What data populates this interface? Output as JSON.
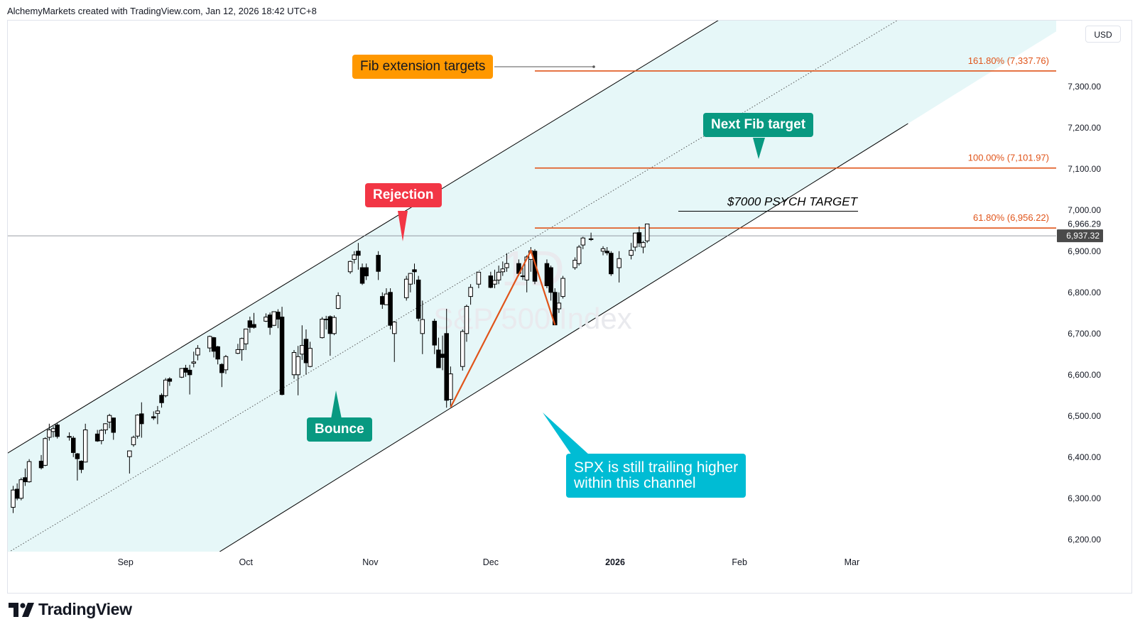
{
  "header": {
    "caption": "AlchemyMarkets created with TradingView.com, Jan 12, 2026 18:42 UTC+8"
  },
  "currency_button": "USD",
  "watermark": {
    "interval": "1D",
    "symbol": "S&P 500 Index"
  },
  "footer": {
    "brand": "TradingView"
  },
  "colors": {
    "up_candle_fill": "#ffffff",
    "down_candle_fill": "#000000",
    "channel_fill": "#e6f7f8",
    "fib_line": "#e0541a",
    "label_rejection": "#f23645",
    "label_bounce": "#089981",
    "label_fib_ext": "#ff9800",
    "label_next_fib": "#089981",
    "label_spx": "#00bcd4"
  },
  "chart_data": {
    "type": "candlestick",
    "ylim": [
      6140,
      7460
    ],
    "y_ticks": [
      "6,200.00",
      "6,300.00",
      "6,400.00",
      "6,500.00",
      "6,600.00",
      "6,700.00",
      "6,800.00",
      "6,900.00",
      "7,000.00",
      "7,100.00",
      "7,200.00",
      "7,300.00"
    ],
    "y_tick_values": [
      6200,
      6300,
      6400,
      6500,
      6600,
      6700,
      6800,
      6900,
      7000,
      7100,
      7200,
      7300
    ],
    "x_ticks": [
      {
        "label": "Sep",
        "date": "2025-09-01",
        "bold": false
      },
      {
        "label": "Oct",
        "date": "2025-10-01",
        "bold": false
      },
      {
        "label": "Nov",
        "date": "2025-11-01",
        "bold": false
      },
      {
        "label": "Dec",
        "date": "2025-12-01",
        "bold": false
      },
      {
        "label": "2026",
        "date": "2026-01-01",
        "bold": true
      },
      {
        "label": "Feb",
        "date": "2026-02-01",
        "bold": false
      },
      {
        "label": "Mar",
        "date": "2026-03-01",
        "bold": false
      }
    ],
    "candles": [
      {
        "d": "2025-08-04",
        "o": 6278,
        "h": 6330,
        "l": 6264,
        "c": 6320
      },
      {
        "d": "2025-08-05",
        "o": 6322,
        "h": 6336,
        "l": 6295,
        "c": 6300
      },
      {
        "d": "2025-08-06",
        "o": 6300,
        "h": 6350,
        "l": 6295,
        "c": 6345
      },
      {
        "d": "2025-08-07",
        "o": 6350,
        "h": 6372,
        "l": 6330,
        "c": 6340
      },
      {
        "d": "2025-08-08",
        "o": 6340,
        "h": 6395,
        "l": 6338,
        "c": 6389
      },
      {
        "d": "2025-08-11",
        "o": 6390,
        "h": 6405,
        "l": 6370,
        "c": 6374
      },
      {
        "d": "2025-08-12",
        "o": 6380,
        "h": 6448,
        "l": 6378,
        "c": 6445
      },
      {
        "d": "2025-08-13",
        "o": 6448,
        "h": 6481,
        "l": 6440,
        "c": 6466
      },
      {
        "d": "2025-08-14",
        "o": 6462,
        "h": 6475,
        "l": 6448,
        "c": 6469
      },
      {
        "d": "2025-08-15",
        "o": 6478,
        "h": 6482,
        "l": 6445,
        "c": 6450
      },
      {
        "d": "2025-08-18",
        "o": 6450,
        "h": 6460,
        "l": 6440,
        "c": 6449
      },
      {
        "d": "2025-08-19",
        "o": 6446,
        "h": 6451,
        "l": 6400,
        "c": 6411
      },
      {
        "d": "2025-08-20",
        "o": 6408,
        "h": 6410,
        "l": 6343,
        "c": 6396
      },
      {
        "d": "2025-08-21",
        "o": 6390,
        "h": 6392,
        "l": 6361,
        "c": 6370
      },
      {
        "d": "2025-08-22",
        "o": 6388,
        "h": 6481,
        "l": 6387,
        "c": 6466
      },
      {
        "d": "2025-08-25",
        "o": 6456,
        "h": 6466,
        "l": 6437,
        "c": 6439
      },
      {
        "d": "2025-08-26",
        "o": 6440,
        "h": 6468,
        "l": 6431,
        "c": 6465
      },
      {
        "d": "2025-08-27",
        "o": 6466,
        "h": 6482,
        "l": 6456,
        "c": 6481
      },
      {
        "d": "2025-08-28",
        "o": 6485,
        "h": 6505,
        "l": 6470,
        "c": 6501
      },
      {
        "d": "2025-08-29",
        "o": 6495,
        "h": 6496,
        "l": 6442,
        "c": 6460
      },
      {
        "d": "2025-09-02",
        "o": 6401,
        "h": 6416,
        "l": 6360,
        "c": 6415
      },
      {
        "d": "2025-09-03",
        "o": 6430,
        "h": 6452,
        "l": 6425,
        "c": 6448
      },
      {
        "d": "2025-09-04",
        "o": 6451,
        "h": 6504,
        "l": 6445,
        "c": 6502
      },
      {
        "d": "2025-09-05",
        "o": 6505,
        "h": 6533,
        "l": 6447,
        "c": 6481
      },
      {
        "d": "2025-09-08",
        "o": 6498,
        "h": 6511,
        "l": 6490,
        "c": 6495
      },
      {
        "d": "2025-09-09",
        "o": 6506,
        "h": 6524,
        "l": 6480,
        "c": 6512
      },
      {
        "d": "2025-09-10",
        "o": 6550,
        "h": 6555,
        "l": 6520,
        "c": 6532
      },
      {
        "d": "2025-09-11",
        "o": 6549,
        "h": 6592,
        "l": 6545,
        "c": 6587
      },
      {
        "d": "2025-09-12",
        "o": 6590,
        "h": 6594,
        "l": 6573,
        "c": 6584
      },
      {
        "d": "2025-09-15",
        "o": 6594,
        "h": 6616,
        "l": 6592,
        "c": 6615
      },
      {
        "d": "2025-09-16",
        "o": 6616,
        "h": 6624,
        "l": 6595,
        "c": 6606
      },
      {
        "d": "2025-09-17",
        "o": 6611,
        "h": 6624,
        "l": 6552,
        "c": 6600
      },
      {
        "d": "2025-09-18",
        "o": 6628,
        "h": 6656,
        "l": 6618,
        "c": 6631
      },
      {
        "d": "2025-09-19",
        "o": 6648,
        "h": 6672,
        "l": 6635,
        "c": 6664
      },
      {
        "d": "2025-09-22",
        "o": 6665,
        "h": 6695,
        "l": 6655,
        "c": 6693
      },
      {
        "d": "2025-09-23",
        "o": 6690,
        "h": 6692,
        "l": 6642,
        "c": 6657
      },
      {
        "d": "2025-09-24",
        "o": 6668,
        "h": 6670,
        "l": 6625,
        "c": 6638
      },
      {
        "d": "2025-09-25",
        "o": 6625,
        "h": 6628,
        "l": 6570,
        "c": 6605
      },
      {
        "d": "2025-09-26",
        "o": 6612,
        "h": 6648,
        "l": 6602,
        "c": 6644
      },
      {
        "d": "2025-09-29",
        "o": 6652,
        "h": 6675,
        "l": 6650,
        "c": 6661
      },
      {
        "d": "2025-09-30",
        "o": 6661,
        "h": 6690,
        "l": 6634,
        "c": 6688
      },
      {
        "d": "2025-10-01",
        "o": 6675,
        "h": 6711,
        "l": 6660,
        "c": 6711
      },
      {
        "d": "2025-10-02",
        "o": 6731,
        "h": 6741,
        "l": 6702,
        "c": 6715
      },
      {
        "d": "2025-10-03",
        "o": 6722,
        "h": 6750,
        "l": 6712,
        "c": 6715
      },
      {
        "d": "2025-10-06",
        "o": 6730,
        "h": 6749,
        "l": 6728,
        "c": 6740
      },
      {
        "d": "2025-10-07",
        "o": 6745,
        "h": 6751,
        "l": 6697,
        "c": 6715
      },
      {
        "d": "2025-10-08",
        "o": 6720,
        "h": 6753,
        "l": 6718,
        "c": 6753
      },
      {
        "d": "2025-10-09",
        "o": 6752,
        "h": 6759,
        "l": 6713,
        "c": 6735
      },
      {
        "d": "2025-10-10",
        "o": 6740,
        "h": 6765,
        "l": 6550,
        "c": 6552
      },
      {
        "d": "2025-10-13",
        "o": 6600,
        "h": 6660,
        "l": 6590,
        "c": 6654
      },
      {
        "d": "2025-10-14",
        "o": 6600,
        "h": 6670,
        "l": 6550,
        "c": 6644
      },
      {
        "d": "2025-10-15",
        "o": 6650,
        "h": 6720,
        "l": 6636,
        "c": 6671
      },
      {
        "d": "2025-10-16",
        "o": 6686,
        "h": 6710,
        "l": 6600,
        "c": 6629
      },
      {
        "d": "2025-10-17",
        "o": 6620,
        "h": 6680,
        "l": 6618,
        "c": 6664
      },
      {
        "d": "2025-10-20",
        "o": 6690,
        "h": 6740,
        "l": 6688,
        "c": 6735
      },
      {
        "d": "2025-10-21",
        "o": 6735,
        "h": 6743,
        "l": 6710,
        "c": 6735
      },
      {
        "d": "2025-10-22",
        "o": 6741,
        "h": 6744,
        "l": 6646,
        "c": 6700
      },
      {
        "d": "2025-10-23",
        "o": 6700,
        "h": 6744,
        "l": 6696,
        "c": 6739
      },
      {
        "d": "2025-10-24",
        "o": 6761,
        "h": 6800,
        "l": 6759,
        "c": 6792
      },
      {
        "d": "2025-10-27",
        "o": 6850,
        "h": 6877,
        "l": 6845,
        "c": 6875
      },
      {
        "d": "2025-10-28",
        "o": 6880,
        "h": 6900,
        "l": 6870,
        "c": 6891
      },
      {
        "d": "2025-10-29",
        "o": 6900,
        "h": 6920,
        "l": 6855,
        "c": 6890
      },
      {
        "d": "2025-10-30",
        "o": 6860,
        "h": 6870,
        "l": 6818,
        "c": 6822
      },
      {
        "d": "2025-10-31",
        "o": 6860,
        "h": 6870,
        "l": 6830,
        "c": 6840
      },
      {
        "d": "2025-11-03",
        "o": 6890,
        "h": 6900,
        "l": 6830,
        "c": 6851
      },
      {
        "d": "2025-11-04",
        "o": 6790,
        "h": 6800,
        "l": 6760,
        "c": 6771
      },
      {
        "d": "2025-11-05",
        "o": 6770,
        "h": 6810,
        "l": 6770,
        "c": 6796
      },
      {
        "d": "2025-11-06",
        "o": 6800,
        "h": 6810,
        "l": 6710,
        "c": 6720
      },
      {
        "d": "2025-11-07",
        "o": 6700,
        "h": 6730,
        "l": 6631,
        "c": 6728
      },
      {
        "d": "2025-11-10",
        "o": 6787,
        "h": 6840,
        "l": 6780,
        "c": 6832
      },
      {
        "d": "2025-11-11",
        "o": 6820,
        "h": 6847,
        "l": 6800,
        "c": 6846
      },
      {
        "d": "2025-11-12",
        "o": 6855,
        "h": 6870,
        "l": 6820,
        "c": 6850
      },
      {
        "d": "2025-11-13",
        "o": 6830,
        "h": 6840,
        "l": 6730,
        "c": 6737
      },
      {
        "d": "2025-11-14",
        "o": 6700,
        "h": 6780,
        "l": 6650,
        "c": 6734
      },
      {
        "d": "2025-11-17",
        "o": 6730,
        "h": 6736,
        "l": 6650,
        "c": 6672
      },
      {
        "d": "2025-11-18",
        "o": 6660,
        "h": 6690,
        "l": 6630,
        "c": 6617
      },
      {
        "d": "2025-11-19",
        "o": 6650,
        "h": 6695,
        "l": 6611,
        "c": 6642
      },
      {
        "d": "2025-11-20",
        "o": 6700,
        "h": 6760,
        "l": 6520,
        "c": 6538
      },
      {
        "d": "2025-11-21",
        "o": 6540,
        "h": 6620,
        "l": 6521,
        "c": 6602
      },
      {
        "d": "2025-11-24",
        "o": 6620,
        "h": 6710,
        "l": 6610,
        "c": 6705
      },
      {
        "d": "2025-11-25",
        "o": 6700,
        "h": 6770,
        "l": 6680,
        "c": 6766
      },
      {
        "d": "2025-11-26",
        "o": 6790,
        "h": 6820,
        "l": 6770,
        "c": 6812
      },
      {
        "d": "2025-11-28",
        "o": 6820,
        "h": 6850,
        "l": 6810,
        "c": 6849
      },
      {
        "d": "2025-12-01",
        "o": 6840,
        "h": 6850,
        "l": 6810,
        "c": 6812
      },
      {
        "d": "2025-12-02",
        "o": 6820,
        "h": 6855,
        "l": 6810,
        "c": 6829
      },
      {
        "d": "2025-12-03",
        "o": 6830,
        "h": 6865,
        "l": 6820,
        "c": 6849
      },
      {
        "d": "2025-12-04",
        "o": 6850,
        "h": 6875,
        "l": 6840,
        "c": 6857
      },
      {
        "d": "2025-12-05",
        "o": 6860,
        "h": 6895,
        "l": 6850,
        "c": 6870
      },
      {
        "d": "2025-12-08",
        "o": 6870,
        "h": 6880,
        "l": 6840,
        "c": 6846
      },
      {
        "d": "2025-12-09",
        "o": 6840,
        "h": 6860,
        "l": 6830,
        "c": 6840
      },
      {
        "d": "2025-12-10",
        "o": 6830,
        "h": 6890,
        "l": 6800,
        "c": 6886
      },
      {
        "d": "2025-12-11",
        "o": 6880,
        "h": 6910,
        "l": 6850,
        "c": 6901
      },
      {
        "d": "2025-12-12",
        "o": 6900,
        "h": 6905,
        "l": 6820,
        "c": 6827
      },
      {
        "d": "2025-12-15",
        "o": 6870,
        "h": 6880,
        "l": 6810,
        "c": 6816
      },
      {
        "d": "2025-12-16",
        "o": 6860,
        "h": 6865,
        "l": 6780,
        "c": 6800
      },
      {
        "d": "2025-12-17",
        "o": 6800,
        "h": 6810,
        "l": 6721,
        "c": 6721
      },
      {
        "d": "2025-12-18",
        "o": 6760,
        "h": 6800,
        "l": 6750,
        "c": 6774
      },
      {
        "d": "2025-12-19",
        "o": 6790,
        "h": 6840,
        "l": 6785,
        "c": 6834
      },
      {
        "d": "2025-12-22",
        "o": 6860,
        "h": 6885,
        "l": 6855,
        "c": 6878
      },
      {
        "d": "2025-12-23",
        "o": 6870,
        "h": 6915,
        "l": 6865,
        "c": 6910
      },
      {
        "d": "2025-12-24",
        "o": 6915,
        "h": 6935,
        "l": 6905,
        "c": 6932
      },
      {
        "d": "2025-12-26",
        "o": 6930,
        "h": 6945,
        "l": 6925,
        "c": 6929
      },
      {
        "d": "2025-12-29",
        "o": 6900,
        "h": 6912,
        "l": 6890,
        "c": 6906
      },
      {
        "d": "2025-12-30",
        "o": 6900,
        "h": 6910,
        "l": 6890,
        "c": 6896
      },
      {
        "d": "2025-12-31",
        "o": 6895,
        "h": 6900,
        "l": 6840,
        "c": 6845
      },
      {
        "d": "2026-01-02",
        "o": 6860,
        "h": 6900,
        "l": 6824,
        "c": 6882
      },
      {
        "d": "2026-01-05",
        "o": 6890,
        "h": 6920,
        "l": 6880,
        "c": 6902
      },
      {
        "d": "2026-01-06",
        "o": 6910,
        "h": 6945,
        "l": 6900,
        "c": 6944
      },
      {
        "d": "2026-01-07",
        "o": 6945,
        "h": 6960,
        "l": 6910,
        "c": 6920
      },
      {
        "d": "2026-01-08",
        "o": 6910,
        "h": 6925,
        "l": 6895,
        "c": 6921
      },
      {
        "d": "2026-01-09",
        "o": 6925,
        "h": 6966,
        "l": 6920,
        "c": 6966
      }
    ],
    "channel": {
      "upper": [
        {
          "d": "2025-08-01",
          "v": 6400
        },
        {
          "d": "2026-01-31",
          "v": 7486
        }
      ],
      "lower": [
        {
          "d": "2025-09-19",
          "v": 6137
        },
        {
          "d": "2026-03-15",
          "v": 7210
        }
      ],
      "mid": [
        {
          "d": "2025-08-01",
          "v": 6158
        },
        {
          "d": "2026-03-15",
          "v": 7476
        }
      ]
    },
    "fib_levels": [
      {
        "label": "161.80% (7,337.76)",
        "value": 7337.76
      },
      {
        "label": "100.00% (7,101.97)",
        "value": 7101.97
      },
      {
        "label": "61.80% (6,956.22)",
        "value": 6956.22
      }
    ],
    "fib_legs": [
      {
        "d": "2025-11-21",
        "v": 6521
      },
      {
        "d": "2025-12-11",
        "v": 6901
      },
      {
        "d": "2025-12-17",
        "v": 6721
      }
    ],
    "psych_target": {
      "label": "$7000 PSYCH TARGET",
      "value": 6997
    },
    "current_price": {
      "value": 6937.32,
      "label": "6,937.32"
    },
    "high_marker": {
      "value": 6966.29,
      "label": "6,966.29"
    },
    "annotations": {
      "rejection": "Rejection",
      "bounce": "Bounce",
      "fib_extension": "Fib extension targets",
      "next_fib": "Next Fib target",
      "spx_line1": "SPX is still trailing higher",
      "spx_line2": "within this channel"
    }
  }
}
